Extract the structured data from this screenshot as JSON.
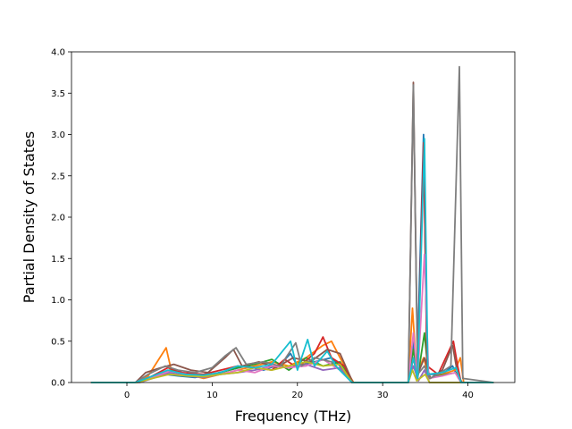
{
  "chart_data": {
    "type": "line",
    "title": "",
    "xlabel": "Frequency (THz)",
    "ylabel": "Partial Density of States",
    "xlim": [
      -6.5,
      45.5
    ],
    "ylim": [
      0.0,
      4.0
    ],
    "x_ticks": [
      0,
      10,
      20,
      30,
      40
    ],
    "x_tick_labels": [
      "0",
      "10",
      "20",
      "30",
      "40"
    ],
    "y_ticks": [
      0.0,
      0.5,
      1.0,
      1.5,
      2.0,
      2.5,
      3.0,
      3.5,
      4.0
    ],
    "y_tick_labels": [
      "0.0",
      "0.5",
      "1.0",
      "1.5",
      "2.0",
      "2.5",
      "3.0",
      "3.5",
      "4.0"
    ],
    "grid": false,
    "legend": "none",
    "x_range_of_data": [
      -4.2,
      43.0
    ],
    "series": [
      {
        "color": "#1f77b4",
        "points": [
          [
            -4.2,
            0
          ],
          [
            1.0,
            0
          ],
          [
            2.5,
            0.05
          ],
          [
            4.5,
            0.1
          ],
          [
            6,
            0.08
          ],
          [
            8,
            0.06
          ],
          [
            10,
            0.1
          ],
          [
            12,
            0.15
          ],
          [
            14,
            0.2
          ],
          [
            16,
            0.15
          ],
          [
            18,
            0.22
          ],
          [
            19.2,
            0.35
          ],
          [
            20,
            0.2
          ],
          [
            22,
            0.25
          ],
          [
            24,
            0.3
          ],
          [
            26,
            0.1
          ],
          [
            26.5,
            0
          ],
          [
            33.0,
            0
          ],
          [
            33.6,
            0.5
          ],
          [
            34.0,
            0.05
          ],
          [
            34.8,
            3.0
          ],
          [
            35.2,
            0.1
          ],
          [
            37,
            0.1
          ],
          [
            38.2,
            0.2
          ],
          [
            38.9,
            0.05
          ],
          [
            39.3,
            0
          ],
          [
            43,
            0
          ]
        ]
      },
      {
        "color": "#ff7f0e",
        "points": [
          [
            -4.2,
            0
          ],
          [
            1.0,
            0
          ],
          [
            2.5,
            0.08
          ],
          [
            4.6,
            0.42
          ],
          [
            5.2,
            0.15
          ],
          [
            7,
            0.1
          ],
          [
            9,
            0.05
          ],
          [
            11,
            0.1
          ],
          [
            13,
            0.15
          ],
          [
            15,
            0.2
          ],
          [
            17,
            0.25
          ],
          [
            19,
            0.2
          ],
          [
            21,
            0.3
          ],
          [
            23,
            0.45
          ],
          [
            24,
            0.5
          ],
          [
            25,
            0.3
          ],
          [
            26.3,
            0.05
          ],
          [
            26.6,
            0
          ],
          [
            33.0,
            0
          ],
          [
            33.5,
            0.9
          ],
          [
            34.0,
            0.1
          ],
          [
            34.8,
            0.3
          ],
          [
            35.5,
            0.05
          ],
          [
            37,
            0.1
          ],
          [
            38.5,
            0.15
          ],
          [
            39.1,
            0.3
          ],
          [
            39.5,
            0
          ],
          [
            43,
            0
          ]
        ]
      },
      {
        "color": "#2ca02c",
        "points": [
          [
            -4.2,
            0
          ],
          [
            1.2,
            0
          ],
          [
            3,
            0.06
          ],
          [
            5,
            0.15
          ],
          [
            7,
            0.1
          ],
          [
            9,
            0.08
          ],
          [
            11,
            0.12
          ],
          [
            13,
            0.18
          ],
          [
            15,
            0.22
          ],
          [
            17,
            0.28
          ],
          [
            19,
            0.15
          ],
          [
            21,
            0.3
          ],
          [
            23,
            0.2
          ],
          [
            25,
            0.25
          ],
          [
            26.4,
            0
          ],
          [
            33.0,
            0
          ],
          [
            33.6,
            0.4
          ],
          [
            34.1,
            0.05
          ],
          [
            34.9,
            0.6
          ],
          [
            35.4,
            0.05
          ],
          [
            37.5,
            0.1
          ],
          [
            38.6,
            0.12
          ],
          [
            39.3,
            0
          ],
          [
            43,
            0
          ]
        ]
      },
      {
        "color": "#d62728",
        "points": [
          [
            -4.2,
            0
          ],
          [
            1.0,
            0
          ],
          [
            2.8,
            0.07
          ],
          [
            4.8,
            0.18
          ],
          [
            6.5,
            0.12
          ],
          [
            9,
            0.1
          ],
          [
            11,
            0.15
          ],
          [
            13,
            0.2
          ],
          [
            15,
            0.18
          ],
          [
            17,
            0.15
          ],
          [
            18.5,
            0.28
          ],
          [
            20,
            0.18
          ],
          [
            22,
            0.35
          ],
          [
            23,
            0.55
          ],
          [
            24,
            0.3
          ],
          [
            25.5,
            0.2
          ],
          [
            26.5,
            0
          ],
          [
            33.0,
            0
          ],
          [
            33.6,
            0.3
          ],
          [
            34.1,
            0.05
          ],
          [
            34.8,
            2.9
          ],
          [
            35.2,
            0.2
          ],
          [
            36.5,
            0.1
          ],
          [
            38.3,
            0.5
          ],
          [
            38.8,
            0.2
          ],
          [
            39.2,
            0
          ],
          [
            43,
            0
          ]
        ]
      },
      {
        "color": "#9467bd",
        "points": [
          [
            -4.2,
            0
          ],
          [
            1.5,
            0
          ],
          [
            3,
            0.05
          ],
          [
            5,
            0.12
          ],
          [
            7,
            0.08
          ],
          [
            9,
            0.06
          ],
          [
            11,
            0.1
          ],
          [
            13,
            0.12
          ],
          [
            15,
            0.15
          ],
          [
            17,
            0.2
          ],
          [
            19,
            0.18
          ],
          [
            21,
            0.22
          ],
          [
            23,
            0.15
          ],
          [
            25,
            0.18
          ],
          [
            26.4,
            0
          ],
          [
            33.0,
            0
          ],
          [
            33.6,
            0.2
          ],
          [
            34.2,
            0.02
          ],
          [
            34.9,
            0.15
          ],
          [
            35.5,
            0
          ],
          [
            43,
            0
          ]
        ]
      },
      {
        "color": "#8c564b",
        "points": [
          [
            -4.2,
            0
          ],
          [
            1.0,
            0
          ],
          [
            2.2,
            0.12
          ],
          [
            4,
            0.18
          ],
          [
            5.5,
            0.22
          ],
          [
            7.5,
            0.15
          ],
          [
            9.5,
            0.12
          ],
          [
            11.5,
            0.3
          ],
          [
            12.5,
            0.4
          ],
          [
            13.5,
            0.2
          ],
          [
            15.5,
            0.25
          ],
          [
            17.5,
            0.18
          ],
          [
            19.5,
            0.3
          ],
          [
            21.5,
            0.25
          ],
          [
            23.5,
            0.4
          ],
          [
            25,
            0.35
          ],
          [
            26.5,
            0
          ],
          [
            33.0,
            0
          ],
          [
            33.6,
            3.63
          ],
          [
            34.1,
            0.1
          ],
          [
            34.9,
            0.3
          ],
          [
            35.6,
            0.05
          ],
          [
            37,
            0.15
          ],
          [
            38.2,
            0.45
          ],
          [
            38.8,
            0.1
          ],
          [
            39.3,
            0
          ],
          [
            43,
            0
          ]
        ]
      },
      {
        "color": "#e377c2",
        "points": [
          [
            -4.2,
            0
          ],
          [
            1.3,
            0
          ],
          [
            3,
            0.06
          ],
          [
            5,
            0.14
          ],
          [
            7,
            0.1
          ],
          [
            9,
            0.08
          ],
          [
            11,
            0.1
          ],
          [
            13,
            0.15
          ],
          [
            15,
            0.12
          ],
          [
            17,
            0.2
          ],
          [
            19,
            0.18
          ],
          [
            21,
            0.2
          ],
          [
            23,
            0.28
          ],
          [
            25,
            0.15
          ],
          [
            26.4,
            0
          ],
          [
            33.0,
            0
          ],
          [
            33.6,
            0.6
          ],
          [
            34.1,
            0.05
          ],
          [
            34.9,
            1.55
          ],
          [
            35.4,
            0.05
          ],
          [
            37,
            0.08
          ],
          [
            38.5,
            0.12
          ],
          [
            39.2,
            0
          ],
          [
            43,
            0
          ]
        ]
      },
      {
        "color": "#7f7f7f",
        "points": [
          [
            -4.2,
            0
          ],
          [
            1.0,
            0
          ],
          [
            2.5,
            0.1
          ],
          [
            4.5,
            0.2
          ],
          [
            6,
            0.15
          ],
          [
            8,
            0.12
          ],
          [
            10,
            0.18
          ],
          [
            11.5,
            0.32
          ],
          [
            12.8,
            0.42
          ],
          [
            14,
            0.22
          ],
          [
            16,
            0.25
          ],
          [
            18,
            0.2
          ],
          [
            19.8,
            0.48
          ],
          [
            20.5,
            0.2
          ],
          [
            22,
            0.3
          ],
          [
            24,
            0.25
          ],
          [
            26.5,
            0
          ],
          [
            33.0,
            0
          ],
          [
            33.6,
            3.6
          ],
          [
            34.1,
            0.1
          ],
          [
            34.9,
            0.2
          ],
          [
            35.5,
            0.05
          ],
          [
            36.5,
            0.1
          ],
          [
            38.0,
            0.2
          ],
          [
            39.0,
            3.82
          ],
          [
            39.4,
            0.05
          ],
          [
            43,
            0
          ]
        ]
      },
      {
        "color": "#bcbd22",
        "points": [
          [
            -4.2,
            0
          ],
          [
            1.2,
            0
          ],
          [
            3,
            0.05
          ],
          [
            5,
            0.1
          ],
          [
            7,
            0.08
          ],
          [
            9,
            0.07
          ],
          [
            11,
            0.1
          ],
          [
            13,
            0.12
          ],
          [
            15,
            0.18
          ],
          [
            17,
            0.15
          ],
          [
            19,
            0.2
          ],
          [
            21,
            0.25
          ],
          [
            23,
            0.2
          ],
          [
            25,
            0.22
          ],
          [
            26.4,
            0
          ],
          [
            33.0,
            0
          ],
          [
            33.5,
            0.15
          ],
          [
            34.0,
            0.02
          ],
          [
            35.0,
            0.1
          ],
          [
            35.5,
            0
          ],
          [
            43,
            0
          ]
        ]
      },
      {
        "color": "#17becf",
        "points": [
          [
            -4.2,
            0
          ],
          [
            1.0,
            0
          ],
          [
            2.8,
            0.07
          ],
          [
            4.8,
            0.15
          ],
          [
            6.8,
            0.1
          ],
          [
            9,
            0.09
          ],
          [
            11,
            0.12
          ],
          [
            13,
            0.2
          ],
          [
            15,
            0.18
          ],
          [
            17,
            0.22
          ],
          [
            19.2,
            0.5
          ],
          [
            20,
            0.15
          ],
          [
            21.2,
            0.52
          ],
          [
            22,
            0.2
          ],
          [
            23.5,
            0.38
          ],
          [
            24.5,
            0.2
          ],
          [
            26.4,
            0
          ],
          [
            33.0,
            0
          ],
          [
            33.6,
            0.3
          ],
          [
            34.1,
            0.05
          ],
          [
            34.9,
            2.95
          ],
          [
            35.3,
            0.1
          ],
          [
            37,
            0.12
          ],
          [
            38.6,
            0.18
          ],
          [
            39.2,
            0
          ],
          [
            43,
            0
          ]
        ]
      }
    ]
  }
}
